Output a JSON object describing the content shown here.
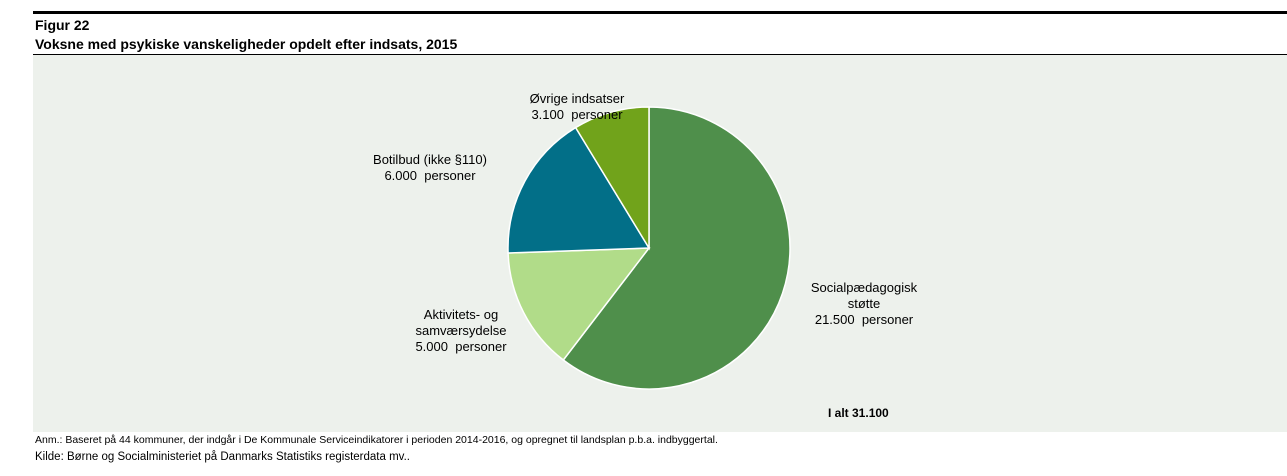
{
  "figure_label": "Figur 22",
  "chart_data": {
    "type": "pie",
    "title": "Voksne med psykiske vanskeligheder opdelt efter indsats, 2015",
    "categories": [
      "Socialpædagogisk støtte",
      "Aktivitets- og samværsydelse",
      "Botilbud (ikke §110)",
      "Øvrige indsatser"
    ],
    "values": [
      21500,
      5000,
      6000,
      3100
    ],
    "value_labels": [
      "21.500  personer",
      "5.000  personer",
      "6.000  personer",
      "3.100  personer"
    ],
    "colors": [
      "#4f8f4b",
      "#b1dc89",
      "#026f88",
      "#71a31b"
    ],
    "total_label": "I alt 31.100"
  },
  "note": "Anm.: Baseret på 44 kommuner, der indgår i De Kommunale Serviceindikatorer i perioden 2014-2016, og opregnet til landsplan p.b.a. indbyggertal.",
  "source": "Kilde: Børne og Socialministeriet på Danmarks Statistiks registerdata mv.."
}
